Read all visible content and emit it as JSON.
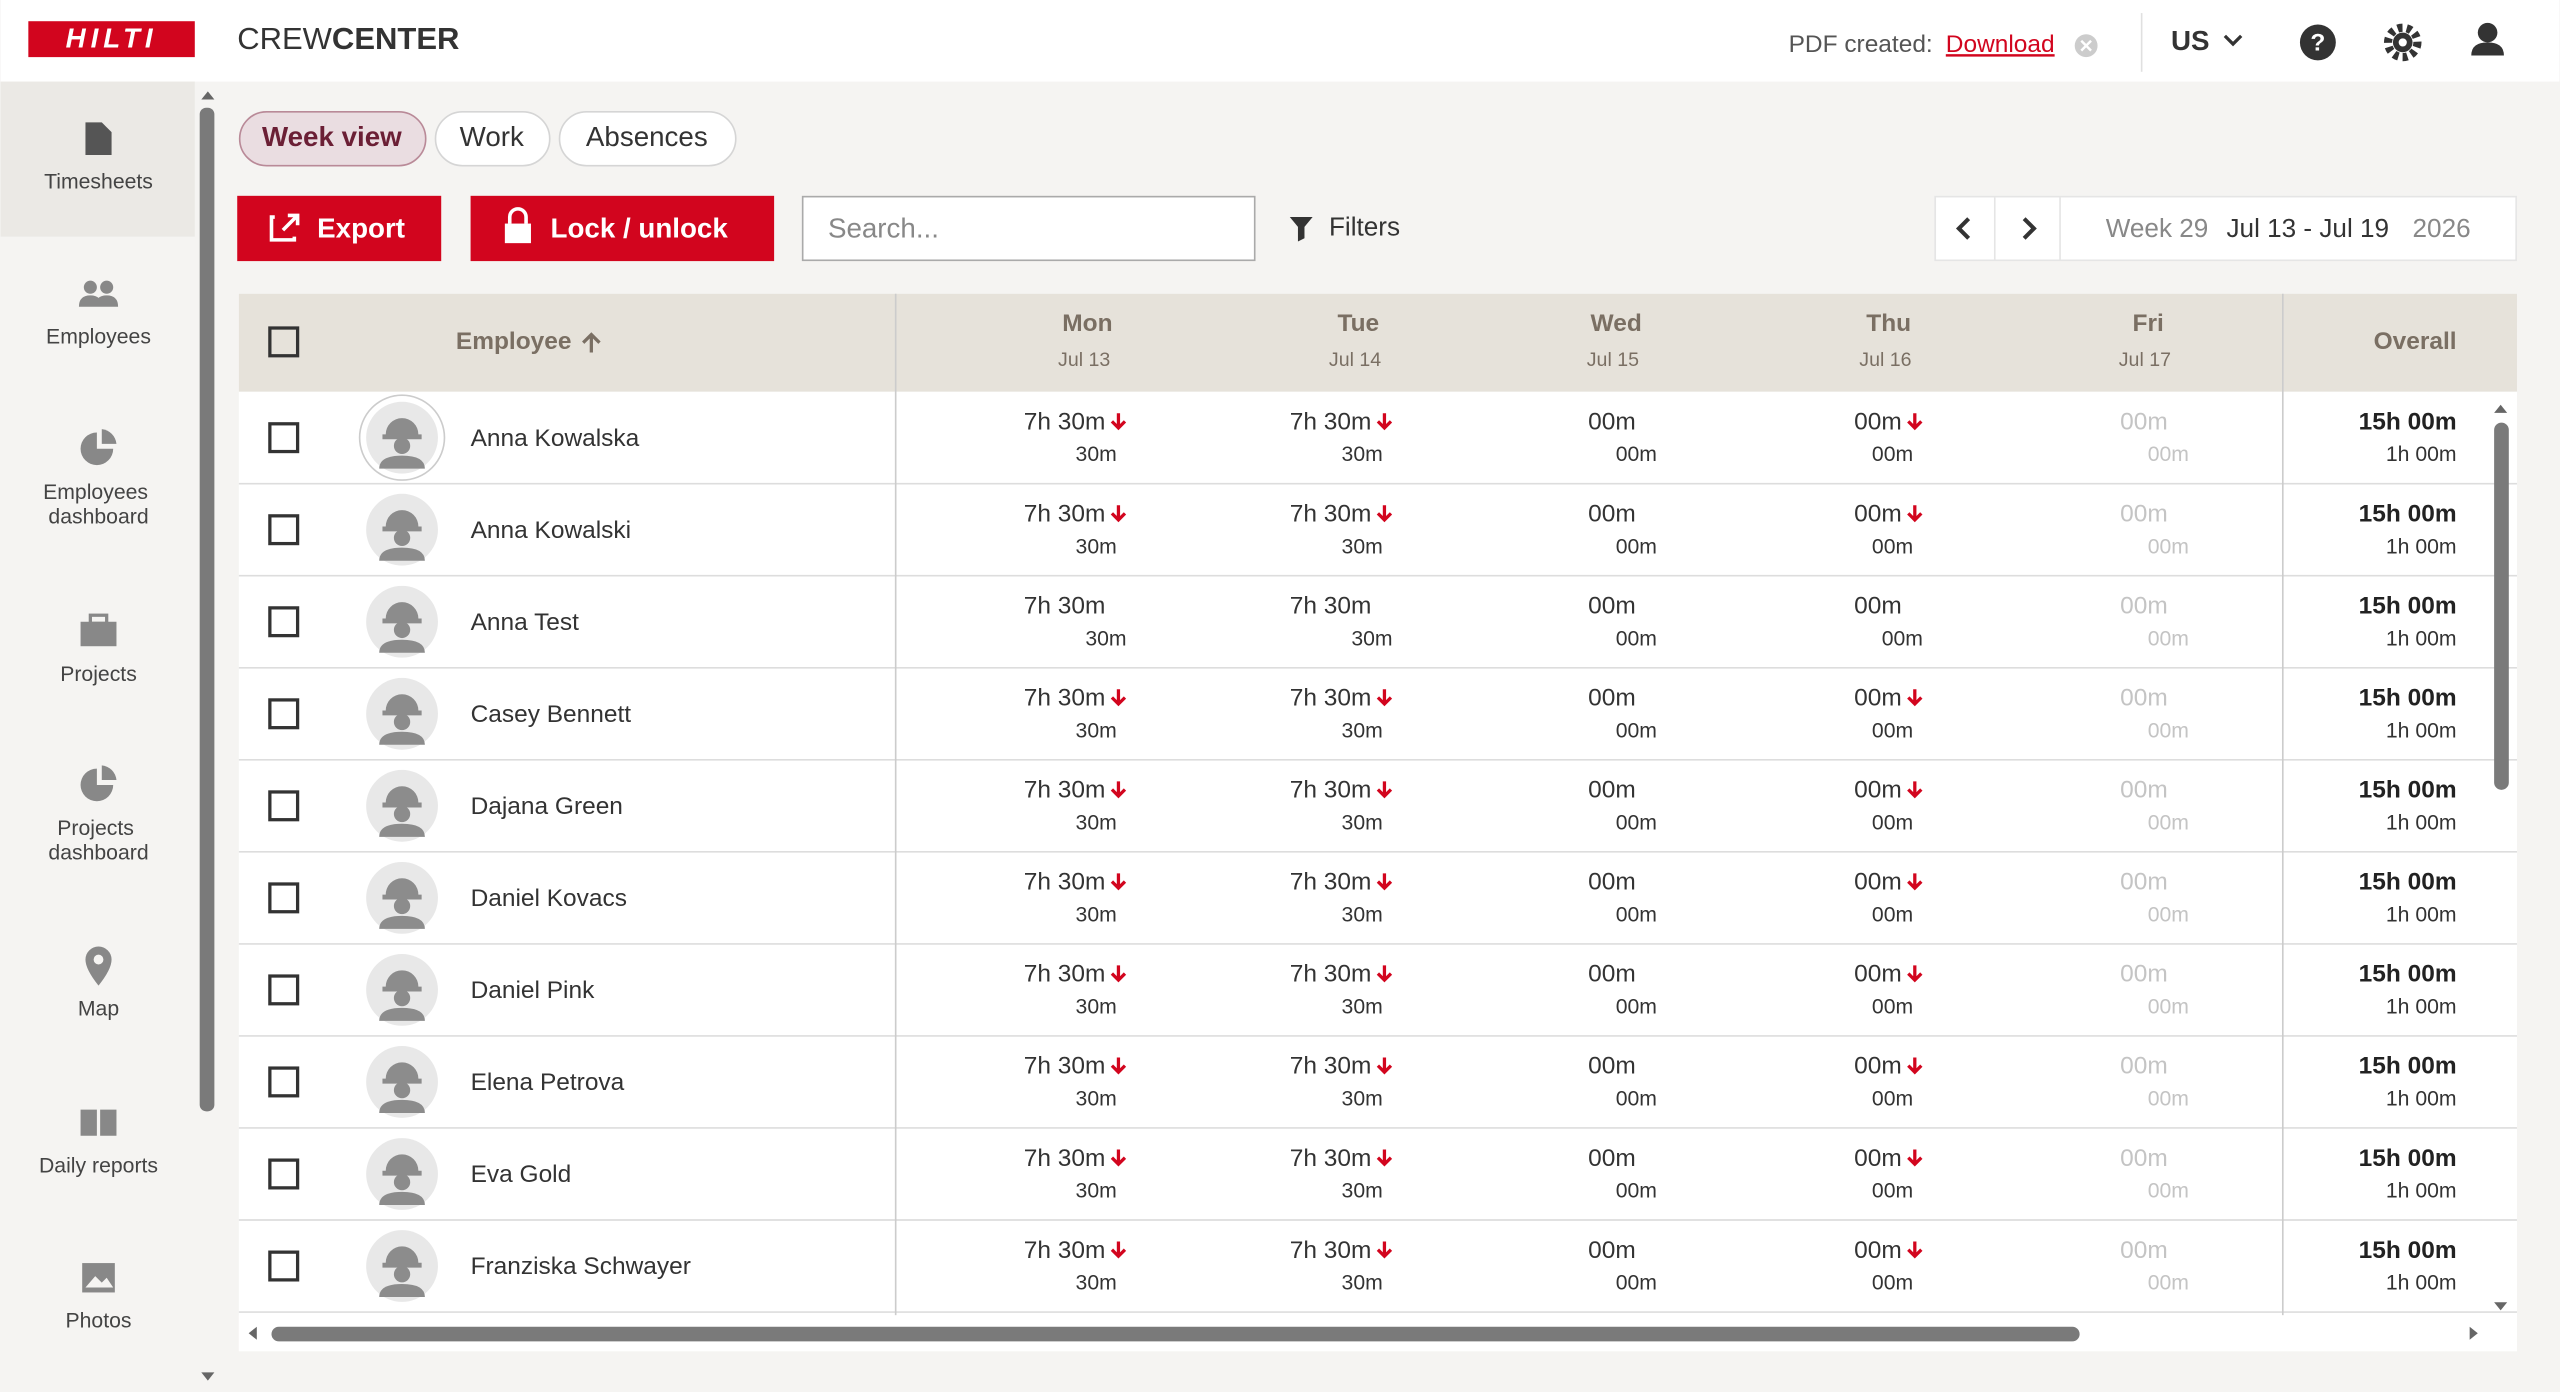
{
  "header": {
    "brand": "HILTI",
    "app_prefix": "CREW",
    "app_suffix": "CENTER",
    "pdf_label": "PDF created:",
    "pdf_link": "Download",
    "region": "US"
  },
  "nav": [
    "Timesheets",
    "Employees",
    "Employees dashboard",
    "Projects",
    "Projects dashboard",
    "Map",
    "Daily reports",
    "Photos"
  ],
  "tabs": [
    "Week view",
    "Work",
    "Absences"
  ],
  "toolbar": {
    "export": "Export",
    "lock": "Lock / unlock",
    "search_placeholder": "Search...",
    "filters": "Filters",
    "week": "Week 29",
    "range": "Jul 13 - Jul 19",
    "year": "2026"
  },
  "table": {
    "employee_header": "Employee",
    "days": [
      {
        "name": "Mon",
        "date": "Jul 13"
      },
      {
        "name": "Tue",
        "date": "Jul 14"
      },
      {
        "name": "Wed",
        "date": "Jul 15"
      },
      {
        "name": "Thu",
        "date": "Jul 16"
      },
      {
        "name": "Fri",
        "date": "Jul 17"
      }
    ],
    "overall_header": "Overall",
    "rows": [
      {
        "name": "Anna Kowalska",
        "days": [
          [
            "7h 30m",
            "30m"
          ],
          [
            "7h 30m",
            "30m"
          ],
          [
            "00m",
            "00m"
          ],
          [
            "00m",
            "00m"
          ],
          [
            "00m",
            "00m"
          ]
        ],
        "alerts": [
          true,
          true,
          false,
          true,
          false
        ],
        "overall": [
          "15h 00m",
          "1h 00m"
        ]
      },
      {
        "name": "Anna Kowalski",
        "days": [
          [
            "7h 30m",
            "30m"
          ],
          [
            "7h 30m",
            "30m"
          ],
          [
            "00m",
            "00m"
          ],
          [
            "00m",
            "00m"
          ],
          [
            "00m",
            "00m"
          ]
        ],
        "alerts": [
          true,
          true,
          false,
          true,
          false
        ],
        "overall": [
          "15h 00m",
          "1h 00m"
        ]
      },
      {
        "name": "Anna Test",
        "days": [
          [
            "7h 30m",
            "30m"
          ],
          [
            "7h 30m",
            "30m"
          ],
          [
            "00m",
            "00m"
          ],
          [
            "00m",
            "00m"
          ],
          [
            "00m",
            "00m"
          ]
        ],
        "alerts": [
          false,
          false,
          false,
          false,
          false
        ],
        "overall": [
          "15h 00m",
          "1h 00m"
        ]
      },
      {
        "name": "Casey Bennett",
        "days": [
          [
            "7h 30m",
            "30m"
          ],
          [
            "7h 30m",
            "30m"
          ],
          [
            "00m",
            "00m"
          ],
          [
            "00m",
            "00m"
          ],
          [
            "00m",
            "00m"
          ]
        ],
        "alerts": [
          true,
          true,
          false,
          true,
          false
        ],
        "overall": [
          "15h 00m",
          "1h 00m"
        ]
      },
      {
        "name": "Dajana Green",
        "days": [
          [
            "7h 30m",
            "30m"
          ],
          [
            "7h 30m",
            "30m"
          ],
          [
            "00m",
            "00m"
          ],
          [
            "00m",
            "00m"
          ],
          [
            "00m",
            "00m"
          ]
        ],
        "alerts": [
          true,
          true,
          false,
          true,
          false
        ],
        "overall": [
          "15h 00m",
          "1h 00m"
        ]
      },
      {
        "name": "Daniel Kovacs",
        "days": [
          [
            "7h 30m",
            "30m"
          ],
          [
            "7h 30m",
            "30m"
          ],
          [
            "00m",
            "00m"
          ],
          [
            "00m",
            "00m"
          ],
          [
            "00m",
            "00m"
          ]
        ],
        "alerts": [
          true,
          true,
          false,
          true,
          false
        ],
        "overall": [
          "15h 00m",
          "1h 00m"
        ]
      },
      {
        "name": "Daniel Pink",
        "days": [
          [
            "7h 30m",
            "30m"
          ],
          [
            "7h 30m",
            "30m"
          ],
          [
            "00m",
            "00m"
          ],
          [
            "00m",
            "00m"
          ],
          [
            "00m",
            "00m"
          ]
        ],
        "alerts": [
          true,
          true,
          false,
          true,
          false
        ],
        "overall": [
          "15h 00m",
          "1h 00m"
        ]
      },
      {
        "name": "Elena Petrova",
        "days": [
          [
            "7h 30m",
            "30m"
          ],
          [
            "7h 30m",
            "30m"
          ],
          [
            "00m",
            "00m"
          ],
          [
            "00m",
            "00m"
          ],
          [
            "00m",
            "00m"
          ]
        ],
        "alerts": [
          true,
          true,
          false,
          true,
          false
        ],
        "overall": [
          "15h 00m",
          "1h 00m"
        ]
      },
      {
        "name": "Eva Gold",
        "days": [
          [
            "7h 30m",
            "30m"
          ],
          [
            "7h 30m",
            "30m"
          ],
          [
            "00m",
            "00m"
          ],
          [
            "00m",
            "00m"
          ],
          [
            "00m",
            "00m"
          ]
        ],
        "alerts": [
          true,
          true,
          false,
          true,
          false
        ],
        "overall": [
          "15h 00m",
          "1h 00m"
        ]
      },
      {
        "name": "Franziska Schwayer",
        "days": [
          [
            "7h 30m",
            "30m"
          ],
          [
            "7h 30m",
            "30m"
          ],
          [
            "00m",
            "00m"
          ],
          [
            "00m",
            "00m"
          ],
          [
            "00m",
            "00m"
          ]
        ],
        "alerts": [
          true,
          true,
          false,
          true,
          false
        ],
        "overall": [
          "15h 00m",
          "1h 00m"
        ]
      }
    ]
  }
}
